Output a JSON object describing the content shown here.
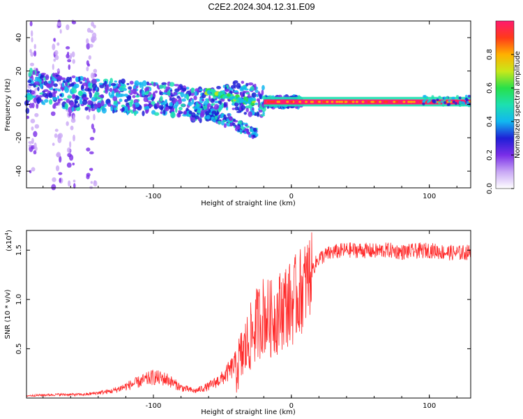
{
  "title": "C2E2.2024.304.12.31.E09",
  "chart_data": [
    {
      "type": "heatmap",
      "xlabel": "Height of straight line (km)",
      "ylabel": "Frequency (Hz)",
      "xlim": [
        -192,
        130
      ],
      "ylim": [
        -50,
        50
      ],
      "xticks": [
        -100,
        0,
        100
      ],
      "xtick_labels": [
        "-100",
        "0",
        "100"
      ],
      "yticks": [
        -40,
        -20,
        0,
        20,
        40
      ],
      "ytick_labels": [
        "-40",
        "-20",
        "0",
        "20",
        "40"
      ],
      "ridge": {
        "x": [
          -190,
          -170,
          -150,
          -130,
          -110,
          -90,
          -70,
          -55,
          -40,
          -30,
          -20,
          -10,
          0,
          20,
          50,
          80,
          100,
          130
        ],
        "y": [
          12,
          8,
          6,
          5,
          4,
          3,
          0,
          0,
          5,
          3,
          1.5,
          1.5,
          1.5,
          1.5,
          1.5,
          1.5,
          1.5,
          1.5
        ]
      },
      "colorbar": {
        "label": "Normalized spectral amplitude",
        "range": [
          0,
          1
        ],
        "ticks": [
          0.0,
          0.2,
          0.4,
          0.6,
          0.8
        ],
        "tick_labels": [
          "0.0",
          "0.2",
          "0.4",
          "0.6",
          "0.8"
        ],
        "colors": [
          "#ffffff",
          "#c9a8f5",
          "#7a2ee8",
          "#1f1fd6",
          "#12b7f0",
          "#1de0b0",
          "#28e04a",
          "#c8e81a",
          "#ffb000",
          "#ff3a1a",
          "#ff1a6e"
        ]
      },
      "grid": false
    },
    {
      "type": "line",
      "xlabel": "Height of straight line (km)",
      "ylabel": "SNR (10 * v/v)",
      "y_multiplier_label": "(x10",
      "y_multiplier_exp": "4",
      "y_multiplier_close": ")",
      "xlim": [
        -192,
        130
      ],
      "ylim": [
        0,
        1.7
      ],
      "xticks": [
        -100,
        0,
        100
      ],
      "xtick_labels": [
        "-100",
        "0",
        "100"
      ],
      "yticks": [
        0.5,
        1.0,
        1.5
      ],
      "ytick_labels": [
        "0.5",
        "1.0",
        "1.5"
      ],
      "color": "#ff2a2a",
      "x": [
        -192,
        -170,
        -150,
        -130,
        -115,
        -100,
        -90,
        -80,
        -70,
        -60,
        -50,
        -40,
        -35,
        -30,
        -25,
        -20,
        -15,
        -10,
        -5,
        0,
        5,
        10,
        15,
        20,
        30,
        40,
        50,
        60,
        70,
        80,
        90,
        100,
        110,
        120,
        130
      ],
      "y": [
        0.02,
        0.03,
        0.03,
        0.06,
        0.12,
        0.18,
        0.16,
        0.09,
        0.06,
        0.1,
        0.17,
        0.3,
        0.45,
        0.6,
        0.75,
        0.85,
        0.8,
        0.85,
        0.95,
        0.95,
        1.05,
        1.15,
        1.3,
        1.42,
        1.48,
        1.5,
        1.5,
        1.49,
        1.5,
        1.48,
        1.49,
        1.5,
        1.48,
        1.47,
        1.48
      ],
      "grid": false
    }
  ]
}
